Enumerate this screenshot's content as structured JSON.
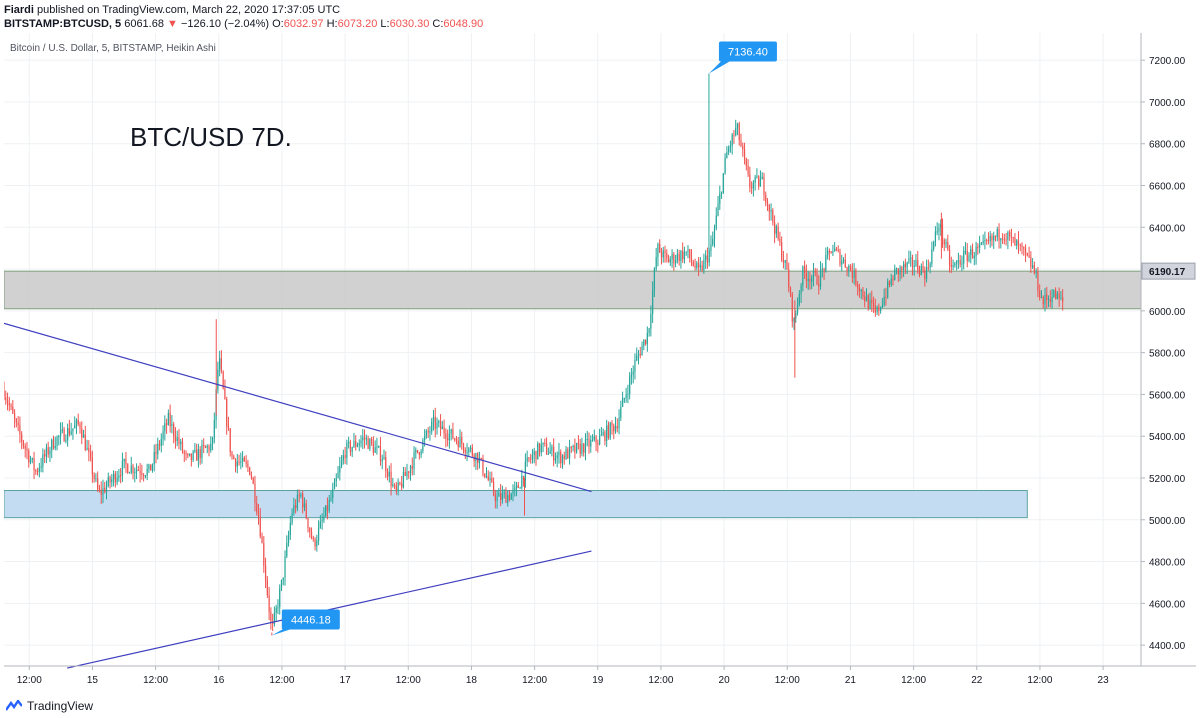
{
  "header": {
    "publisher": "Fiardi",
    "published_text": "published on TradingView.com, March 22, 2020 17:37:05 UTC",
    "symbol": "BITSTAMP:BTCUSD, 5",
    "last": "6061.68",
    "change_arrow": "▼",
    "change": "−126.10 (−2.04%)",
    "ohlc": [
      {
        "k": "O:",
        "v": "6032.97"
      },
      {
        "k": "H:",
        "v": "6073.20"
      },
      {
        "k": "L:",
        "v": "6030.30"
      },
      {
        "k": "C:",
        "v": "6048.90"
      }
    ]
  },
  "footer": {
    "brand": "TradingView"
  },
  "colors": {
    "up": "#26a69a",
    "down": "#ef5350",
    "trendline": "#3f3fc0",
    "grey_zone": "#c9c9c9",
    "blue_zone": "#bcd8ef",
    "label": "#2196f3",
    "grid": "#eef1f4"
  },
  "chart_data": {
    "type": "candlestick",
    "subtitle": "Bitcoin / U.S. Dollar, 5, BITSTAMP, Heikin Ashi",
    "annotation": "BTC/USD 7D.",
    "x_tick_labels": [
      "12:00",
      "15",
      "12:00",
      "16",
      "12:00",
      "17",
      "12:00",
      "18",
      "12:00",
      "19",
      "12:00",
      "20",
      "12:00",
      "21",
      "12:00",
      "22",
      "12:00",
      "23"
    ],
    "y_tick_labels": [
      "7200.00",
      "7000.00",
      "6800.00",
      "6600.00",
      "6400.00",
      "6200.00",
      "6000.00",
      "5800.00",
      "5600.00",
      "5400.00",
      "5200.00",
      "5000.00",
      "4800.00",
      "4600.00",
      "4400.00"
    ],
    "y_range": [
      4300,
      7330
    ],
    "x_range_days": [
      14.3,
      23.3
    ],
    "price_label": "6190.17",
    "callouts": [
      {
        "text": "7136.40",
        "x": 19.88,
        "y": 7136.4
      },
      {
        "text": "4446.18",
        "x": 16.42,
        "y": 4446.18
      }
    ],
    "zones": [
      {
        "name": "resistance-zone",
        "x0": 14.3,
        "x1": 23.3,
        "y0": 6010,
        "y1": 6190
      },
      {
        "name": "support-zone",
        "x0": 14.3,
        "x1": 22.4,
        "y0": 5010,
        "y1": 5140
      }
    ],
    "trendlines": [
      {
        "x0": 14.3,
        "y0": 5940,
        "x1": 18.95,
        "y1": 5135
      },
      {
        "x0": 14.8,
        "y0": 4290,
        "x1": 18.95,
        "y1": 4850
      }
    ],
    "price_path": [
      {
        "x": 14.3,
        "y": 5620
      },
      {
        "x": 14.4,
        "y": 5440
      },
      {
        "x": 14.55,
        "y": 5230
      },
      {
        "x": 14.7,
        "y": 5380
      },
      {
        "x": 14.9,
        "y": 5460
      },
      {
        "x": 15.05,
        "y": 5120
      },
      {
        "x": 15.25,
        "y": 5260
      },
      {
        "x": 15.45,
        "y": 5230
      },
      {
        "x": 15.6,
        "y": 5480
      },
      {
        "x": 15.75,
        "y": 5280
      },
      {
        "x": 15.95,
        "y": 5360
      },
      {
        "x": 16.0,
        "y": 5780
      },
      {
        "x": 16.1,
        "y": 5300
      },
      {
        "x": 16.25,
        "y": 5240
      },
      {
        "x": 16.32,
        "y": 5000
      },
      {
        "x": 16.42,
        "y": 4460
      },
      {
        "x": 16.5,
        "y": 4700
      },
      {
        "x": 16.58,
        "y": 5040
      },
      {
        "x": 16.65,
        "y": 5120
      },
      {
        "x": 16.75,
        "y": 4880
      },
      {
        "x": 16.9,
        "y": 5120
      },
      {
        "x": 17.0,
        "y": 5330
      },
      {
        "x": 17.15,
        "y": 5390
      },
      {
        "x": 17.3,
        "y": 5300
      },
      {
        "x": 17.4,
        "y": 5120
      },
      {
        "x": 17.55,
        "y": 5300
      },
      {
        "x": 17.7,
        "y": 5460
      },
      {
        "x": 17.9,
        "y": 5380
      },
      {
        "x": 18.05,
        "y": 5300
      },
      {
        "x": 18.2,
        "y": 5100
      },
      {
        "x": 18.35,
        "y": 5130
      },
      {
        "x": 18.45,
        "y": 5280
      },
      {
        "x": 18.55,
        "y": 5350
      },
      {
        "x": 18.7,
        "y": 5300
      },
      {
        "x": 18.85,
        "y": 5340
      },
      {
        "x": 19.0,
        "y": 5380
      },
      {
        "x": 19.15,
        "y": 5460
      },
      {
        "x": 19.3,
        "y": 5760
      },
      {
        "x": 19.4,
        "y": 5900
      },
      {
        "x": 19.47,
        "y": 6300
      },
      {
        "x": 19.55,
        "y": 6240
      },
      {
        "x": 19.7,
        "y": 6280
      },
      {
        "x": 19.8,
        "y": 6180
      },
      {
        "x": 19.9,
        "y": 6300
      },
      {
        "x": 20.02,
        "y": 6750
      },
      {
        "x": 20.1,
        "y": 6880
      },
      {
        "x": 20.2,
        "y": 6600
      },
      {
        "x": 20.3,
        "y": 6620
      },
      {
        "x": 20.4,
        "y": 6400
      },
      {
        "x": 20.5,
        "y": 6180
      },
      {
        "x": 20.55,
        "y": 5930
      },
      {
        "x": 20.62,
        "y": 6180
      },
      {
        "x": 20.75,
        "y": 6150
      },
      {
        "x": 20.85,
        "y": 6300
      },
      {
        "x": 21.0,
        "y": 6200
      },
      {
        "x": 21.1,
        "y": 6080
      },
      {
        "x": 21.2,
        "y": 5980
      },
      {
        "x": 21.35,
        "y": 6180
      },
      {
        "x": 21.5,
        "y": 6230
      },
      {
        "x": 21.6,
        "y": 6180
      },
      {
        "x": 21.7,
        "y": 6420
      },
      {
        "x": 21.8,
        "y": 6200
      },
      {
        "x": 21.9,
        "y": 6260
      },
      {
        "x": 22.05,
        "y": 6300
      },
      {
        "x": 22.2,
        "y": 6380
      },
      {
        "x": 22.35,
        "y": 6290
      },
      {
        "x": 22.45,
        "y": 6200
      },
      {
        "x": 22.52,
        "y": 6040
      },
      {
        "x": 22.6,
        "y": 6080
      },
      {
        "x": 22.68,
        "y": 6040
      }
    ]
  }
}
